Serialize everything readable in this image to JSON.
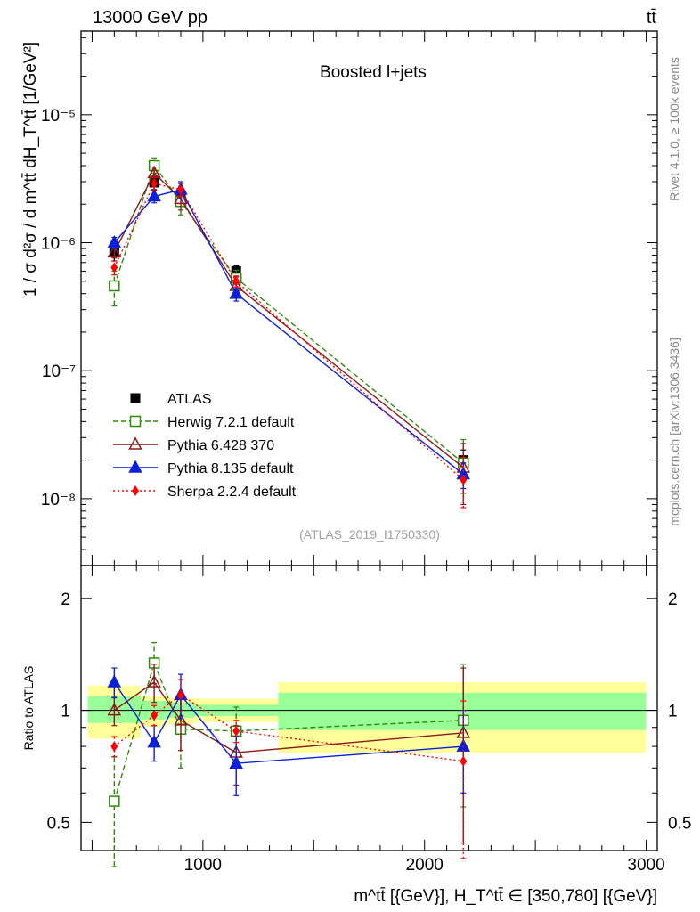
{
  "header": {
    "energy": "13000 GeV pp",
    "process": "tt̄"
  },
  "side_labels": {
    "rivet": "Rivet 4.1.0, ≥ 100k events",
    "mcplots": "mcplots.cern.ch [arXiv:1306.3436]"
  },
  "chart_data": [
    {
      "type": "line",
      "panel": "main",
      "title": "Boosted l+jets",
      "watermark": "(ATLAS_2019_I1750330)",
      "ylabel": "1 / σ d²σ / d m^tt̄ dH_T^tt̄ [1/GeV²]",
      "yscale": "log",
      "xlim": [
        450,
        3050
      ],
      "ylim": [
        3e-09,
        4.5e-05
      ],
      "y_ticks": [
        {
          "v": 1e-08,
          "label": "10⁻⁸"
        },
        {
          "v": 1e-07,
          "label": "10⁻⁷"
        },
        {
          "v": 1e-06,
          "label": "10⁻⁶"
        },
        {
          "v": 1e-05,
          "label": "10⁻⁵"
        }
      ],
      "x": [
        600,
        780,
        900,
        1150,
        2175
      ],
      "series": [
        {
          "name": "ATLAS",
          "color": "#000000",
          "marker": "square-filled",
          "dash": "",
          "values": [
            8.4e-07,
            2.95e-06,
            2.35e-06,
            6e-07,
            2e-08
          ],
          "err_lo": [
            7.2e-07,
            2.6e-06,
            2.1e-06,
            5.4e-07,
            1.6e-08
          ],
          "err_hi": [
            9.6e-07,
            3.3e-06,
            2.6e-06,
            6.6e-07,
            2.4e-08
          ]
        },
        {
          "name": "Herwig 7.2.1 default",
          "color": "#2e8b0a",
          "marker": "square-open",
          "dash": "6,3",
          "values": [
            4.6e-07,
            4e-06,
            2.1e-06,
            5.3e-07,
            1.9e-08
          ],
          "err_lo": [
            3.2e-07,
            3.5e-06,
            1.65e-06,
            4.4e-07,
            1.1e-08
          ],
          "err_hi": [
            6e-07,
            4.6e-06,
            2.5e-06,
            6.1e-07,
            2.9e-08
          ]
        },
        {
          "name": "Pythia 6.428 370",
          "color": "#8b1a1a",
          "marker": "triangle-open",
          "dash": "",
          "values": [
            8.4e-07,
            3.5e-06,
            2.2e-06,
            4.6e-07,
            1.75e-08
          ],
          "err_lo": [
            7.6e-07,
            3.1e-06,
            1.8e-06,
            3.8e-07,
            9e-09
          ],
          "err_hi": [
            9.2e-07,
            3.9e-06,
            2.6e-06,
            5.4e-07,
            2.7e-08
          ]
        },
        {
          "name": "Pythia 8.135 default",
          "color": "#0b1fd6",
          "marker": "triangle-filled",
          "dash": "",
          "values": [
            1e-06,
            2.3e-06,
            2.6e-06,
            4e-07,
            1.55e-08
          ],
          "err_lo": [
            9e-07,
            2.05e-06,
            2.2e-06,
            3.5e-07,
            1.2e-08
          ],
          "err_hi": [
            1.1e-06,
            2.55e-06,
            3e-06,
            4.5e-07,
            1.9e-08
          ]
        },
        {
          "name": "Sherpa 2.2.4 default",
          "color": "#ff0000",
          "marker": "diamond-filled",
          "dash": "2,3",
          "values": [
            6.4e-07,
            2.9e-06,
            2.6e-06,
            5e-07,
            1.4e-08
          ],
          "err_lo": [
            5.6e-07,
            2.55e-06,
            2.3e-06,
            4.5e-07,
            8.5e-09
          ],
          "err_hi": [
            7.2e-07,
            3.25e-06,
            2.9e-06,
            5.5e-07,
            2.1e-08
          ]
        }
      ],
      "legend": {
        "position": "lower-left"
      }
    },
    {
      "type": "line",
      "panel": "ratio",
      "ylabel": "Ratio to ATLAS",
      "xlabel": "m^tt̄ [{GeV}], H_T^tt̄ ∈ [350,780] [{GeV}]",
      "yscale": "log",
      "xlim": [
        450,
        3050
      ],
      "ylim": [
        0.42,
        2.45
      ],
      "y_ticks": [
        {
          "v": 0.5,
          "label": "0.5"
        },
        {
          "v": 1,
          "label": "1"
        },
        {
          "v": 2,
          "label": "2"
        }
      ],
      "x_ticks": [
        {
          "v": 1000,
          "label": "1000"
        },
        {
          "v": 2000,
          "label": "2000"
        },
        {
          "v": 3000,
          "label": "3000"
        }
      ],
      "bands": [
        {
          "x0": 480,
          "x1": 720,
          "stat_lo": 0.925,
          "stat_hi": 1.09,
          "tot_lo": 0.84,
          "tot_hi": 1.165
        },
        {
          "x0": 720,
          "x1": 840,
          "stat_lo": 0.945,
          "stat_hi": 1.06,
          "tot_lo": 0.9,
          "tot_hi": 1.09
        },
        {
          "x0": 840,
          "x1": 960,
          "stat_lo": 0.955,
          "stat_hi": 1.05,
          "tot_lo": 0.92,
          "tot_hi": 1.08
        },
        {
          "x0": 960,
          "x1": 1340,
          "stat_lo": 0.965,
          "stat_hi": 1.035,
          "tot_lo": 0.93,
          "tot_hi": 1.075
        },
        {
          "x0": 1340,
          "x1": 3000,
          "stat_lo": 0.885,
          "stat_hi": 1.115,
          "tot_lo": 0.77,
          "tot_hi": 1.19
        }
      ],
      "series": [
        {
          "name": "Herwig 7.2.1 default",
          "color": "#2e8b0a",
          "marker": "square-open",
          "dash": "6,3",
          "values": [
            0.57,
            1.34,
            0.89,
            0.88,
            0.94
          ],
          "err_lo": [
            0.38,
            1.18,
            0.7,
            0.74,
            0.55
          ],
          "err_hi": [
            0.75,
            1.52,
            1.07,
            1.02,
            1.33
          ]
        },
        {
          "name": "Pythia 6.428 370",
          "color": "#8b1a1a",
          "marker": "triangle-open",
          "dash": "",
          "values": [
            1.0,
            1.19,
            0.94,
            0.77,
            0.87
          ],
          "err_lo": [
            0.91,
            1.05,
            0.78,
            0.63,
            0.44
          ],
          "err_hi": [
            1.09,
            1.33,
            1.1,
            0.91,
            1.3
          ]
        },
        {
          "name": "Pythia 8.135 default",
          "color": "#0b1fd6",
          "marker": "triangle-filled",
          "dash": "",
          "values": [
            1.19,
            0.82,
            1.1,
            0.72,
            0.8
          ],
          "err_lo": [
            1.08,
            0.73,
            0.95,
            0.59,
            0.6
          ],
          "err_hi": [
            1.3,
            0.91,
            1.25,
            0.85,
            1.0
          ]
        },
        {
          "name": "Sherpa 2.2.4 default",
          "color": "#ff0000",
          "marker": "diamond-filled",
          "dash": "2,3",
          "values": [
            0.8,
            0.97,
            1.1,
            0.88,
            0.73
          ],
          "err_lo": [
            0.75,
            0.91,
            0.99,
            0.82,
            0.4
          ],
          "err_hi": [
            0.85,
            1.03,
            1.21,
            0.94,
            1.06
          ]
        }
      ]
    }
  ]
}
